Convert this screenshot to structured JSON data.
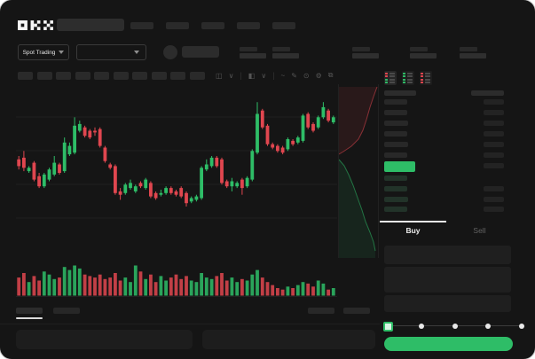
{
  "meta": {
    "app": "OKX",
    "view": "spot-trading-terminal"
  },
  "colors": {
    "bg": "#151515",
    "green": "#2ebd67",
    "red": "#e0464f",
    "bid_tint": "#223329",
    "skeleton": "#2b2b2b",
    "active_text": "#ededed",
    "dim_text": "#636363"
  },
  "topnav": {
    "logo": "OKX",
    "nav_skeletons": 5
  },
  "subnav": {
    "market_selector_label": "Spot Trading",
    "stat_pairs": 5
  },
  "toolbar": {
    "interval_buttons": 10,
    "icons": [
      {
        "name": "chart-style-icon",
        "glyph": "◫"
      },
      {
        "name": "chevron-down-icon",
        "glyph": "∨"
      },
      {
        "name": "divider",
        "glyph": "|"
      },
      {
        "name": "indicator-icon",
        "glyph": "◧"
      },
      {
        "name": "chevron-down-icon",
        "glyph": "∨"
      },
      {
        "name": "divider",
        "glyph": "|"
      },
      {
        "name": "line-tool-icon",
        "glyph": "~"
      },
      {
        "name": "draw-icon",
        "glyph": "✎"
      },
      {
        "name": "screenshot-icon",
        "glyph": "⊙"
      },
      {
        "name": "settings-icon",
        "glyph": "⚙"
      },
      {
        "name": "fullscreen-icon",
        "glyph": "⧉"
      }
    ]
  },
  "chart_data": {
    "type": "candlestick",
    "title": "",
    "note": "no numeric axis labels visible; OHLC given on normalized 0-100 scale of pane height",
    "ylim": [
      0,
      100
    ],
    "grid": "faint horizontal lines",
    "candles": [
      [
        "r",
        58,
        60,
        52,
        54
      ],
      [
        "r",
        59,
        63,
        51,
        53
      ],
      [
        "g",
        51,
        54,
        50,
        53
      ],
      [
        "r",
        56,
        57,
        45,
        46
      ],
      [
        "r",
        48,
        50,
        41,
        42
      ],
      [
        "g",
        42,
        50,
        41,
        49
      ],
      [
        "g",
        46,
        53,
        45,
        52
      ],
      [
        "g",
        49,
        60,
        48,
        56
      ],
      [
        "r",
        55,
        56,
        49,
        50
      ],
      [
        "g",
        51,
        71,
        50,
        68
      ],
      [
        "g",
        61,
        68,
        60,
        66
      ],
      [
        "g",
        62,
        83,
        61,
        78
      ],
      [
        "g",
        75,
        81,
        74,
        79
      ],
      [
        "r",
        77,
        78,
        71,
        72
      ],
      [
        "r",
        75,
        76,
        70,
        71
      ],
      [
        "r",
        75,
        77,
        72,
        74
      ],
      [
        "r",
        76,
        77,
        65,
        66
      ],
      [
        "r",
        65,
        66,
        56,
        57
      ],
      [
        "r",
        55,
        56,
        52,
        53
      ],
      [
        "r",
        54,
        55,
        37,
        38
      ],
      [
        "r",
        39,
        41,
        34,
        37
      ],
      [
        "g",
        38,
        44,
        37,
        43
      ],
      [
        "g",
        41,
        46,
        40,
        44
      ],
      [
        "g",
        39,
        43,
        38,
        42
      ],
      [
        "r",
        44,
        45,
        41,
        42
      ],
      [
        "g",
        41,
        47,
        40,
        46
      ],
      [
        "r",
        44,
        45,
        35,
        36
      ],
      [
        "r",
        38,
        39,
        34,
        35
      ],
      [
        "g",
        37,
        40,
        36,
        38
      ],
      [
        "g",
        38,
        42,
        37,
        41
      ],
      [
        "r",
        41,
        42,
        37,
        38
      ],
      [
        "r",
        39,
        40,
        36,
        37
      ],
      [
        "r",
        41,
        42,
        35,
        36
      ],
      [
        "r",
        38,
        39,
        30,
        32
      ],
      [
        "g",
        33,
        36,
        32,
        35
      ],
      [
        "g",
        34,
        37,
        33,
        36
      ],
      [
        "g",
        35,
        54,
        34,
        53
      ],
      [
        "g",
        52,
        58,
        51,
        55
      ],
      [
        "g",
        54,
        60,
        53,
        59
      ],
      [
        "r",
        59,
        60,
        53,
        54
      ],
      [
        "r",
        58,
        59,
        43,
        44
      ],
      [
        "r",
        45,
        46,
        41,
        42
      ],
      [
        "g",
        42,
        47,
        39,
        45
      ],
      [
        "g",
        42,
        45,
        41,
        44
      ],
      [
        "r",
        46,
        47,
        37,
        41
      ],
      [
        "g",
        42,
        48,
        41,
        47
      ],
      [
        "g",
        46,
        64,
        45,
        63
      ],
      [
        "g",
        62,
        92,
        61,
        85
      ],
      [
        "r",
        87,
        88,
        76,
        77
      ],
      [
        "r",
        78,
        79,
        66,
        67
      ],
      [
        "r",
        67,
        68,
        64,
        65
      ],
      [
        "r",
        66,
        67,
        62,
        63
      ],
      [
        "r",
        65,
        66,
        61,
        62
      ],
      [
        "g",
        64,
        71,
        63,
        70
      ],
      [
        "r",
        69,
        70,
        66,
        67
      ],
      [
        "g",
        68,
        72,
        67,
        71
      ],
      [
        "g",
        69,
        85,
        68,
        84
      ],
      [
        "r",
        85,
        86,
        76,
        77
      ],
      [
        "r",
        79,
        80,
        74,
        75
      ],
      [
        "g",
        77,
        84,
        76,
        83
      ],
      [
        "g",
        83,
        92,
        82,
        89
      ],
      [
        "r",
        87,
        88,
        80,
        81
      ],
      [
        "g",
        80,
        84,
        79,
        83
      ]
    ],
    "volume": [
      60,
      75,
      45,
      65,
      50,
      80,
      70,
      55,
      60,
      95,
      85,
      100,
      90,
      70,
      65,
      60,
      70,
      55,
      60,
      75,
      50,
      60,
      45,
      100,
      80,
      55,
      70,
      45,
      65,
      50,
      60,
      70,
      55,
      65,
      50,
      45,
      75,
      60,
      55,
      65,
      75,
      50,
      60,
      45,
      55,
      50,
      70,
      85,
      60,
      45,
      35,
      25,
      20,
      30,
      25,
      35,
      45,
      40,
      30,
      50,
      40,
      20,
      25
    ],
    "depth": {
      "asks_line": [
        [
          44,
          3
        ],
        [
          40,
          14
        ],
        [
          36,
          26
        ],
        [
          32,
          40
        ],
        [
          28,
          52
        ],
        [
          23,
          62
        ],
        [
          15,
          70
        ],
        [
          6,
          76
        ],
        [
          1,
          79
        ]
      ],
      "bids_line": [
        [
          1,
          85
        ],
        [
          7,
          92
        ],
        [
          12,
          102
        ],
        [
          17,
          114
        ],
        [
          22,
          128
        ],
        [
          27,
          142
        ],
        [
          31,
          155
        ],
        [
          36,
          167
        ],
        [
          40,
          178
        ],
        [
          42,
          188
        ]
      ]
    }
  },
  "orderbook": {
    "view_icons": [
      {
        "name": "book-both-icon",
        "rows": [
          "red",
          "red",
          "green",
          "green"
        ],
        "active": true
      },
      {
        "name": "book-bids-icon",
        "rows": [
          "green",
          "green",
          "green",
          "green"
        ],
        "active": false
      },
      {
        "name": "book-asks-icon",
        "rows": [
          "red",
          "red",
          "red",
          "red"
        ],
        "active": false
      }
    ],
    "header": {
      "left_w": 36,
      "right_w": 37
    },
    "asks": [
      {
        "l": 26,
        "r": 23
      },
      {
        "l": 26,
        "r": 23
      },
      {
        "l": 27,
        "r": 23
      },
      {
        "l": 26,
        "r": 23
      },
      {
        "l": 27,
        "r": 23
      },
      {
        "l": 26,
        "r": 23
      }
    ],
    "price_row": {
      "w": 35,
      "right_w": 23
    },
    "bids": [
      {
        "l": 26,
        "r": 0
      },
      {
        "l": 26,
        "r": 23
      },
      {
        "l": 27,
        "r": 23
      },
      {
        "l": 26,
        "r": 23
      }
    ]
  },
  "trade_panel": {
    "tabs": [
      {
        "label": "Buy",
        "active": true
      },
      {
        "label": "Sell",
        "active": false
      }
    ],
    "form_boxes": 3,
    "slider": {
      "steps": 5,
      "active_step": 0
    }
  },
  "bottom_tabs": {
    "left_skeletons": 2,
    "right_skeletons": 2,
    "active_index": 0
  }
}
